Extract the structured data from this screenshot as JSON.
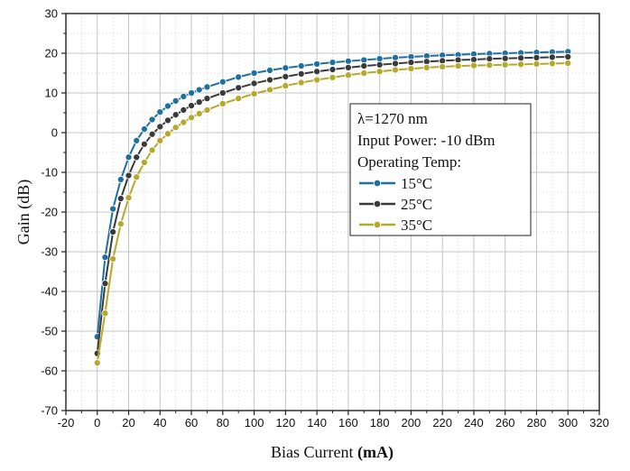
{
  "chart_data": {
    "type": "line",
    "title": "",
    "xlabel_main": "Bias Current ",
    "xlabel_unit": "(mA)",
    "ylabel": "Gain (dB)",
    "xlim": [
      -20,
      320
    ],
    "ylim": [
      -70,
      30
    ],
    "xticks": [
      -20,
      0,
      20,
      40,
      60,
      80,
      100,
      120,
      140,
      160,
      180,
      200,
      220,
      240,
      260,
      280,
      300,
      320
    ],
    "yticks": [
      -70,
      -60,
      -50,
      -40,
      -30,
      -20,
      -10,
      0,
      10,
      20,
      30
    ],
    "grid": true,
    "legend_position": "center-right",
    "annotations": [
      "λ=1270 nm",
      "Input Power:  -10 dBm",
      "Operating Temp:"
    ],
    "x": [
      0,
      5,
      10,
      15,
      20,
      25,
      30,
      35,
      40,
      45,
      50,
      55,
      60,
      65,
      70,
      80,
      90,
      100,
      110,
      120,
      130,
      140,
      150,
      160,
      170,
      180,
      190,
      200,
      210,
      220,
      230,
      240,
      250,
      260,
      270,
      280,
      290,
      300
    ],
    "series": [
      {
        "name": "15°C",
        "color": "#1f6fa0",
        "values": [
          -51.4,
          -31.4,
          -19.2,
          -11.8,
          -6.2,
          -2.0,
          0.9,
          3.3,
          5.2,
          6.7,
          8.0,
          9.1,
          10.0,
          10.8,
          11.5,
          12.8,
          14.0,
          15.0,
          15.7,
          16.3,
          16.8,
          17.3,
          17.7,
          18.0,
          18.3,
          18.6,
          18.9,
          19.1,
          19.3,
          19.5,
          19.6,
          19.8,
          19.9,
          20.0,
          20.1,
          20.2,
          20.3,
          20.4
        ]
      },
      {
        "name": "25°C",
        "color": "#3a3a3a",
        "values": [
          -55.6,
          -38.0,
          -25.0,
          -16.6,
          -10.8,
          -6.2,
          -2.9,
          -0.4,
          1.5,
          3.1,
          4.5,
          5.7,
          6.8,
          7.7,
          8.6,
          10.0,
          11.3,
          12.4,
          13.3,
          14.1,
          14.8,
          15.4,
          15.9,
          16.4,
          16.8,
          17.1,
          17.4,
          17.7,
          17.9,
          18.1,
          18.3,
          18.4,
          18.6,
          18.7,
          18.8,
          18.9,
          19.0,
          19.1
        ]
      },
      {
        "name": "35°C",
        "color": "#b5a82a",
        "values": [
          -58.0,
          -45.5,
          -31.8,
          -23.0,
          -16.4,
          -11.2,
          -7.5,
          -4.4,
          -2.0,
          -0.3,
          1.3,
          2.6,
          3.8,
          4.8,
          5.7,
          7.3,
          8.6,
          9.8,
          10.8,
          11.8,
          12.6,
          13.3,
          13.9,
          14.5,
          15.0,
          15.4,
          15.8,
          16.1,
          16.4,
          16.6,
          16.8,
          16.9,
          17.0,
          17.1,
          17.2,
          17.3,
          17.4,
          17.5
        ]
      }
    ]
  }
}
